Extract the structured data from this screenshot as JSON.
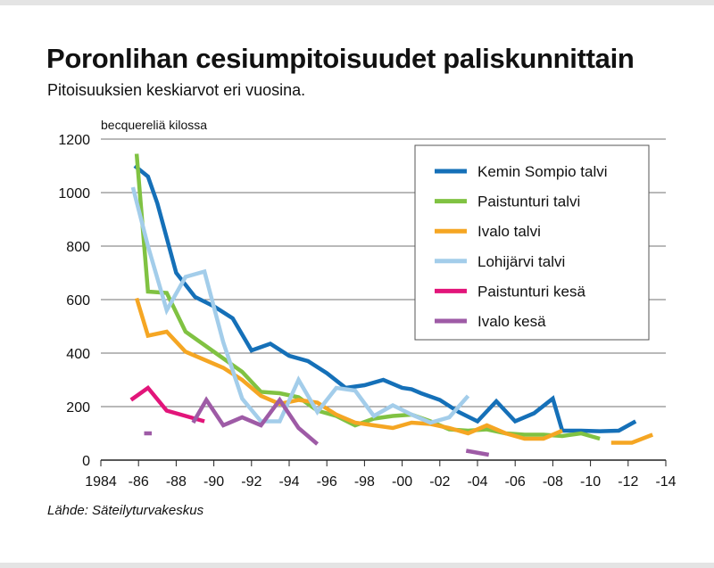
{
  "title": "Poronlihan cesiumpitoisuudet paliskunnittain",
  "subtitle": "Pitoisuuksien keskiarvot eri vuosina.",
  "source": "Lähde: Säteilyturvakeskus",
  "chart_data": {
    "type": "line",
    "title": "Poronlihan cesiumpitoisuudet paliskunnittain",
    "ylabel": "becquereliä kilossa",
    "xlabel": "",
    "xlim": [
      1984,
      2014
    ],
    "ylim": [
      0,
      1200
    ],
    "yticks": [
      0,
      200,
      400,
      600,
      800,
      1000,
      1200
    ],
    "ytick_labels": [
      "0",
      "200",
      "400",
      "600",
      "800",
      "1000",
      "1200"
    ],
    "xticks": [
      1984,
      1986,
      1988,
      1990,
      1992,
      1994,
      1996,
      1998,
      2000,
      2002,
      2004,
      2006,
      2008,
      2010,
      2012,
      2014
    ],
    "xtick_labels": [
      "1984",
      "-86",
      "-88",
      "-90",
      "-92",
      "-94",
      "-96",
      "-98",
      "-00",
      "-02",
      "-04",
      "-06",
      "-08",
      "-10",
      "-12",
      "-14"
    ],
    "grid": "horizontal",
    "legend_position": "top-right",
    "series": [
      {
        "name": "Kemin Sompio talvi",
        "color": "#1570b8",
        "segments": [
          [
            [
              1985.8,
              1100
            ],
            [
              1986.5,
              1060
            ],
            [
              1987,
              960
            ],
            [
              1988,
              700
            ],
            [
              1989,
              610
            ],
            [
              1990,
              575
            ],
            [
              1991,
              530
            ],
            [
              1992,
              410
            ],
            [
              1993,
              435
            ],
            [
              1994,
              390
            ],
            [
              1995,
              370
            ],
            [
              1996,
              325
            ],
            [
              1997,
              270
            ],
            [
              1998,
              280
            ],
            [
              1999,
              300
            ],
            [
              2000,
              270
            ],
            [
              2000.5,
              265
            ],
            [
              2001,
              250
            ],
            [
              2002,
              225
            ],
            [
              2003,
              180
            ],
            [
              2004,
              145
            ],
            [
              2005,
              220
            ],
            [
              2006,
              145
            ],
            [
              2007,
              175
            ],
            [
              2008,
              230
            ],
            [
              2008.5,
              110
            ],
            [
              2009.5,
              110
            ],
            [
              2010.5,
              108
            ],
            [
              2011.5,
              110
            ],
            [
              2012.4,
              145
            ]
          ]
        ]
      },
      {
        "name": "Paistunturi talvi",
        "color": "#80c242",
        "segments": [
          [
            [
              1985.9,
              1145
            ],
            [
              1986.5,
              630
            ],
            [
              1987.5,
              625
            ],
            [
              1988.5,
              480
            ],
            [
              1989.5,
              430
            ],
            [
              1990.5,
              380
            ],
            [
              1991.5,
              330
            ],
            [
              1992.5,
              255
            ],
            [
              1993.5,
              250
            ],
            [
              1994.5,
              235
            ],
            [
              1995.5,
              185
            ],
            [
              1996.5,
              165
            ],
            [
              1997.5,
              130
            ],
            [
              1998.5,
              155
            ],
            [
              1999.5,
              165
            ],
            [
              2000.5,
              170
            ],
            [
              2001.5,
              145
            ],
            [
              2002.5,
              115
            ],
            [
              2003.5,
              110
            ],
            [
              2004.5,
              115
            ],
            [
              2005.5,
              100
            ],
            [
              2006.5,
              95
            ],
            [
              2007.5,
              95
            ],
            [
              2008.5,
              90
            ],
            [
              2009.5,
              100
            ],
            [
              2010.5,
              80
            ]
          ]
        ]
      },
      {
        "name": "Ivalo talvi",
        "color": "#f5a623",
        "segments": [
          [
            [
              1985.9,
              605
            ],
            [
              1986.5,
              465
            ],
            [
              1987.5,
              480
            ],
            [
              1988.5,
              405
            ],
            [
              1989.5,
              375
            ],
            [
              1990.5,
              345
            ],
            [
              1991.5,
              300
            ],
            [
              1992.5,
              240
            ],
            [
              1993.5,
              210
            ],
            [
              1994.5,
              225
            ],
            [
              1995.5,
              215
            ],
            [
              1996.5,
              170
            ],
            [
              1997.5,
              140
            ],
            [
              1998.5,
              130
            ],
            [
              1999.5,
              120
            ],
            [
              2000.5,
              140
            ],
            [
              2001.5,
              135
            ],
            [
              2002.5,
              120
            ],
            [
              2003.5,
              100
            ],
            [
              2004.5,
              130
            ],
            [
              2005.5,
              100
            ],
            [
              2006.5,
              80
            ],
            [
              2007.5,
              80
            ],
            [
              2008.5,
              110
            ]
          ],
          [
            [
              2011.1,
              65
            ],
            [
              2012.2,
              65
            ],
            [
              2013.3,
              95
            ]
          ]
        ]
      },
      {
        "name": "Lohijärvi talvi",
        "color": "#a3cdea",
        "segments": [
          [
            [
              1985.7,
              1020
            ],
            [
              1986.5,
              800
            ],
            [
              1987.5,
              560
            ],
            [
              1988.5,
              685
            ],
            [
              1989.5,
              705
            ],
            [
              1990.5,
              440
            ],
            [
              1991.5,
              230
            ],
            [
              1992.5,
              145
            ],
            [
              1993.5,
              145
            ],
            [
              1994.5,
              300
            ],
            [
              1995.5,
              180
            ],
            [
              1996.5,
              270
            ],
            [
              1997.5,
              260
            ],
            [
              1998.5,
              165
            ],
            [
              1999.5,
              205
            ],
            [
              2000.5,
              170
            ],
            [
              2001.5,
              140
            ],
            [
              2002.5,
              160
            ],
            [
              2003.5,
              240
            ]
          ]
        ]
      },
      {
        "name": "Paistunturi kesä",
        "color": "#e2157a",
        "segments": [
          [
            [
              1985.6,
              225
            ],
            [
              1986.5,
              270
            ],
            [
              1987.5,
              185
            ],
            [
              1988.5,
              165
            ],
            [
              1989.5,
              145
            ]
          ]
        ]
      },
      {
        "name": "Ivalo kesä",
        "color": "#9e5ba6",
        "segments": [
          [
            [
              1986.3,
              100
            ],
            [
              1986.7,
              100
            ]
          ],
          [
            [
              1988.9,
              140
            ],
            [
              1989.6,
              225
            ],
            [
              1990.5,
              130
            ],
            [
              1991.5,
              160
            ],
            [
              1992.5,
              130
            ],
            [
              1993.5,
              225
            ],
            [
              1994.5,
              120
            ],
            [
              1995.5,
              60
            ]
          ],
          [
            [
              2003.4,
              35
            ],
            [
              2004.6,
              20
            ]
          ]
        ]
      }
    ]
  }
}
